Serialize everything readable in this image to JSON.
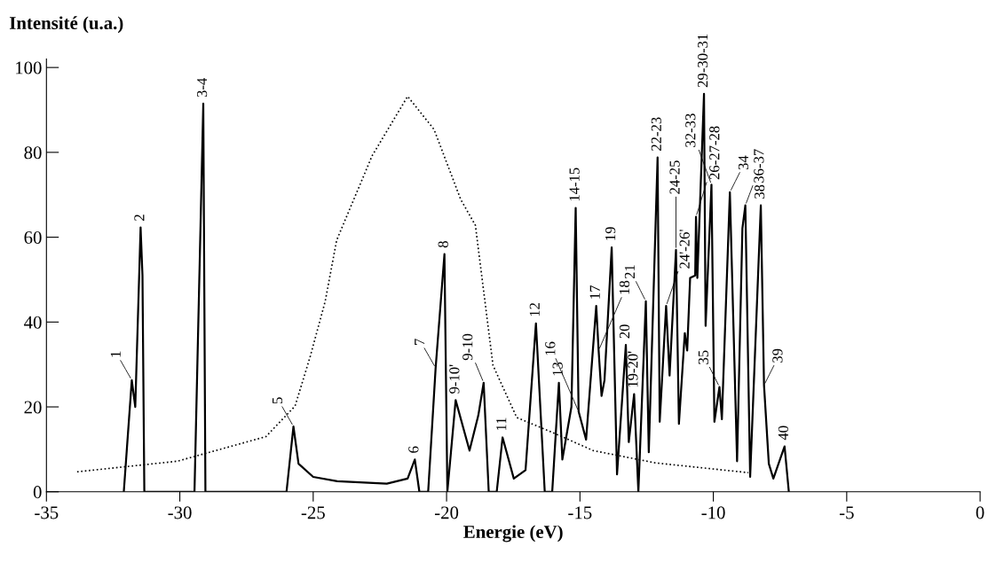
{
  "chart_data": {
    "type": "line",
    "xlabel": "Energie (eV)",
    "ylabel": "Intensité (u.a.)",
    "xlim": [
      -35,
      0
    ],
    "xticks": [
      -35,
      -30,
      -25,
      -20,
      -15,
      -10,
      -5,
      0
    ],
    "ylim": [
      0,
      102
    ],
    "yticks": [
      0,
      20,
      40,
      60,
      80,
      100
    ],
    "grid": false,
    "legend": false,
    "series": [
      {
        "color": "#000000",
        "line_style": "solid",
        "x": [
          -32.1,
          -31.8,
          -31.67,
          -31.47,
          -31.4,
          -31.33,
          -29.45,
          -29.12,
          -29.04,
          -26.0,
          -25.74,
          -25.55,
          -25.0,
          -24.1,
          -22.24,
          -21.46,
          -21.19,
          -21.02,
          -20.69,
          -20.41,
          -20.08,
          -19.97,
          -19.66,
          -19.14,
          -18.81,
          -18.61,
          -18.42,
          -18.12,
          -17.9,
          -17.48,
          -17.04,
          -16.65,
          -16.32,
          -16.04,
          -15.79,
          -15.66,
          -15.32,
          -15.16,
          -15.05,
          -14.77,
          -14.39,
          -14.3,
          -14.19,
          -14.08,
          -13.81,
          -13.61,
          -13.28,
          -13.17,
          -12.97,
          -12.81,
          -12.53,
          -12.42,
          -12.09,
          -12.01,
          -11.77,
          -11.64,
          -11.4,
          -11.29,
          -11.07,
          -10.98,
          -10.87,
          -10.68,
          -10.65,
          -10.6,
          -10.35,
          -10.29,
          -10.07,
          -9.96,
          -9.77,
          -9.68,
          -9.38,
          -9.11,
          -8.91,
          -8.8,
          -8.62,
          -8.22,
          -8.1,
          -7.92,
          -7.75,
          -7.33,
          -7.17
        ],
        "values": [
          0,
          26.3,
          20,
          62.3,
          51,
          0,
          0,
          91.5,
          0,
          0,
          15.4,
          6.6,
          3.5,
          2.5,
          1.9,
          3.1,
          7.6,
          0,
          0,
          29.2,
          56,
          0,
          21.6,
          9.7,
          18,
          25.7,
          0,
          0,
          12.8,
          3.1,
          5.1,
          39.7,
          0,
          0,
          25.7,
          7.6,
          20,
          66.9,
          18.9,
          12.3,
          43.8,
          33.3,
          22.6,
          26.3,
          57.6,
          4.1,
          34.6,
          11.7,
          23,
          0,
          44.9,
          9.3,
          78.8,
          16.5,
          43.8,
          27.4,
          57,
          16,
          37.4,
          33.3,
          50.4,
          51,
          64.8,
          50.4,
          93.8,
          39.1,
          72.4,
          16.5,
          24.7,
          17.1,
          70.6,
          7.2,
          62.1,
          67.5,
          3.5,
          67.5,
          25.1,
          6.6,
          3.1,
          10.7,
          0
        ]
      },
      {
        "color": "#000000",
        "line_style": "dotted",
        "x": [
          -33.85,
          -30.09,
          -26.77,
          -25.68,
          -25.11,
          -24.55,
          -24.12,
          -22.79,
          -21.46,
          -20.47,
          -19.47,
          -18.92,
          -18.26,
          -17.37,
          -16.04,
          -14.5,
          -12.17,
          -8.69
        ],
        "values": [
          4.7,
          7.2,
          13,
          20.2,
          31.9,
          44.9,
          59.3,
          79.2,
          93.2,
          85.4,
          68.9,
          62.8,
          29.8,
          17.5,
          14,
          9.7,
          6.8,
          4.5
        ]
      }
    ],
    "annotations": [
      {
        "text": "1",
        "x": -31.8,
        "y": 26.3
      },
      {
        "text": "2",
        "x": -31.47,
        "y": 62.3
      },
      {
        "text": "3-4",
        "x": -29.12,
        "y": 91.5
      },
      {
        "text": "5",
        "x": -25.74,
        "y": 15.4
      },
      {
        "text": "6",
        "x": -21.19,
        "y": 7.6
      },
      {
        "text": "7",
        "x": -20.41,
        "y": 29.2
      },
      {
        "text": "8",
        "x": -20.08,
        "y": 56
      },
      {
        "text": "9-10'",
        "x": -19.66,
        "y": 21.6
      },
      {
        "text": "9-10",
        "x": -18.61,
        "y": 25.7
      },
      {
        "text": "11",
        "x": -17.9,
        "y": 12.8
      },
      {
        "text": "12",
        "x": -16.65,
        "y": 39.7
      },
      {
        "text": "13",
        "x": -15.79,
        "y": 25.7
      },
      {
        "text": "14-15",
        "x": -15.16,
        "y": 66.9
      },
      {
        "text": "16",
        "x": -15.05,
        "y": 18.9
      },
      {
        "text": "17",
        "x": -14.39,
        "y": 43.8
      },
      {
        "text": "18",
        "x": -14.3,
        "y": 33.3
      },
      {
        "text": "19",
        "x": -13.81,
        "y": 57.6
      },
      {
        "text": "20",
        "x": -13.28,
        "y": 34.6
      },
      {
        "text": "19-20'",
        "x": -12.97,
        "y": 23
      },
      {
        "text": "21",
        "x": -12.53,
        "y": 44.9
      },
      {
        "text": "22-23",
        "x": -12.09,
        "y": 78.8
      },
      {
        "text": "24'-26'",
        "x": -11.77,
        "y": 43.8
      },
      {
        "text": "24-25",
        "x": -11.4,
        "y": 57
      },
      {
        "text": "26-27-28",
        "x": -10.65,
        "y": 64.8
      },
      {
        "text": "29-30-31",
        "x": -10.35,
        "y": 93.8
      },
      {
        "text": "32-33",
        "x": -10.07,
        "y": 72.4
      },
      {
        "text": "35",
        "x": -9.77,
        "y": 24.7
      },
      {
        "text": "34",
        "x": -9.38,
        "y": 70.6
      },
      {
        "text": "36-37",
        "x": -8.8,
        "y": 67.5
      },
      {
        "text": "38",
        "x": -8.22,
        "y": 67.5
      },
      {
        "text": "39",
        "x": -8.1,
        "y": 25.1
      },
      {
        "text": "40",
        "x": -7.33,
        "y": 10.7
      }
    ]
  }
}
